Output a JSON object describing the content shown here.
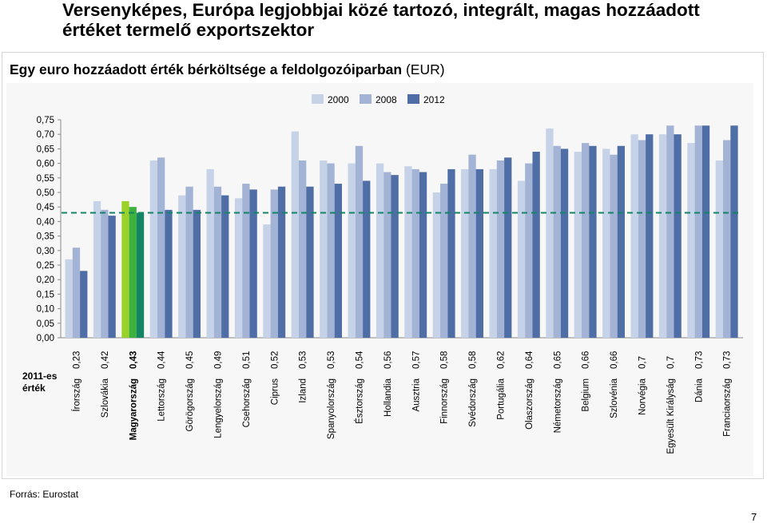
{
  "page": {
    "title": "Versenyképes, Európa legjobbjai közé tartozó, integrált, magas hozzáadott értéket termelő exportszektor",
    "page_number": "7",
    "source": "Forrás: Eurostat"
  },
  "colors": {
    "2000": "#c6d2e8",
    "2008": "#a2b3d6",
    "2012": "#4f6ea6",
    "hu_2000": "#9bd12b",
    "hu_2008": "#3db03e",
    "hu_2012": "#138565",
    "dashed_line": "#138565"
  },
  "chart_data": {
    "type": "bar",
    "title_bold": "Egy euro hozzáadott érték bérköltsége a feldolgozóiparban",
    "title_suffix": "(EUR)",
    "value_row_label": "2011-es érték",
    "categories": [
      "Írország",
      "Szlovákia",
      "Magyarország",
      "Lettország",
      "Görögország",
      "Lengyelország",
      "Csehország",
      "Ciprus",
      "Izland",
      "Spanyolország",
      "Észtország",
      "Hollandia",
      "Ausztria",
      "Finnország",
      "Svédország",
      "Portugália",
      "Olaszország",
      "Németország",
      "Belgium",
      "Szlovénia",
      "Norvégia",
      "Egyesült Királyság",
      "Dánia",
      "Franciaország"
    ],
    "values_2011": [
      "0,23",
      "0,42",
      "0,43",
      "0,44",
      "0,45",
      "0,49",
      "0,51",
      "0,52",
      "0,53",
      "0,53",
      "0,54",
      "0,56",
      "0,57",
      "0,58",
      "0,58",
      "0,62",
      "0,64",
      "0,65",
      "0,66",
      "0,66",
      "0,7",
      "0,7",
      "0,73",
      "0,73"
    ],
    "highlight_category": "Magyarország",
    "series": [
      {
        "name": "2000",
        "values": [
          0.27,
          0.47,
          0.47,
          0.61,
          0.49,
          0.58,
          0.48,
          0.39,
          0.71,
          0.61,
          0.6,
          0.6,
          0.59,
          0.5,
          0.58,
          0.58,
          0.54,
          0.72,
          0.64,
          0.65,
          0.7,
          0.7,
          0.67,
          0.61
        ]
      },
      {
        "name": "2008",
        "values": [
          0.31,
          0.44,
          0.45,
          0.62,
          0.52,
          0.52,
          0.53,
          0.51,
          0.61,
          0.6,
          0.66,
          0.57,
          0.58,
          0.53,
          0.63,
          0.61,
          0.6,
          0.66,
          0.67,
          0.63,
          0.68,
          0.73,
          0.73,
          0.68
        ]
      },
      {
        "name": "2012",
        "values": [
          0.23,
          0.42,
          0.43,
          0.44,
          0.44,
          0.49,
          0.51,
          0.52,
          0.52,
          0.53,
          0.54,
          0.56,
          0.57,
          0.58,
          0.58,
          0.62,
          0.64,
          0.65,
          0.66,
          0.66,
          0.7,
          0.7,
          0.73,
          0.73
        ]
      }
    ],
    "reference_line": 0.43,
    "y_ticks": [
      "0,00",
      "0,05",
      "0,10",
      "0,15",
      "0,20",
      "0,25",
      "0,30",
      "0,35",
      "0,40",
      "0,45",
      "0,50",
      "0,55",
      "0,60",
      "0,65",
      "0,70",
      "0,75"
    ],
    "ylim": [
      0,
      0.75
    ],
    "legend_position": "top-center"
  }
}
